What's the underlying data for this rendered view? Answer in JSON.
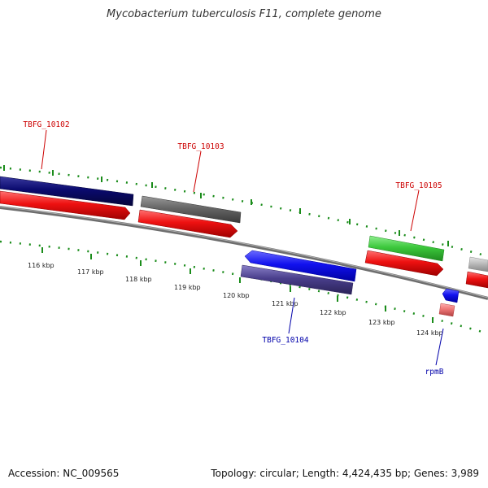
{
  "header": {
    "title": "Mycobacterium tuberculosis F11, complete genome"
  },
  "footer": {
    "accession": "Accession: NC_009565",
    "stats": "Topology: circular; Length: 4,424,435 bp; Genes: 3,989"
  },
  "colors": {
    "backbone": "#888888",
    "tick": "#1a8c1a",
    "label_forward": "#cc0000",
    "label_reverse": "#0000aa",
    "cds_red": "#ee1111"
  },
  "scale_labels": [
    "116 kbp",
    "117 kbp",
    "118 kbp",
    "119 kbp",
    "120 kbp",
    "121 kbp",
    "122 kbp",
    "123 kbp",
    "124 kbp"
  ],
  "gene_labels": {
    "g10102": "TBFG_10102",
    "g10103": "TBFG_10103",
    "g10104": "TBFG_10104",
    "g10105": "TBFG_10105",
    "rpmB": "rpmB"
  },
  "features": [
    {
      "name": "TBFG_10102",
      "strand": "+",
      "color": "#0a0a6e"
    },
    {
      "name": "TBFG_10102-cds",
      "strand": "+",
      "color": "#ee1111"
    },
    {
      "name": "TBFG_10103",
      "strand": "+",
      "color": "#666666"
    },
    {
      "name": "TBFG_10103-cds",
      "strand": "+",
      "color": "#ee1111"
    },
    {
      "name": "TBFG_10104",
      "strand": "-",
      "color": "#1111ee"
    },
    {
      "name": "TBFG_10104-cds",
      "strand": "-",
      "color": "#4a3f8c"
    },
    {
      "name": "TBFG_10105",
      "strand": "+",
      "color": "#3cc83c"
    },
    {
      "name": "TBFG_10105-cds",
      "strand": "+",
      "color": "#ee1111"
    },
    {
      "name": "rpmB",
      "strand": "-",
      "color": "#1111ee"
    },
    {
      "name": "rpmB-cds",
      "strand": "-",
      "color": "#ee7777"
    },
    {
      "name": "next-gene",
      "strand": "+",
      "color": "#bbbbbb"
    },
    {
      "name": "next-gene-cds",
      "strand": "+",
      "color": "#ee1111"
    }
  ]
}
